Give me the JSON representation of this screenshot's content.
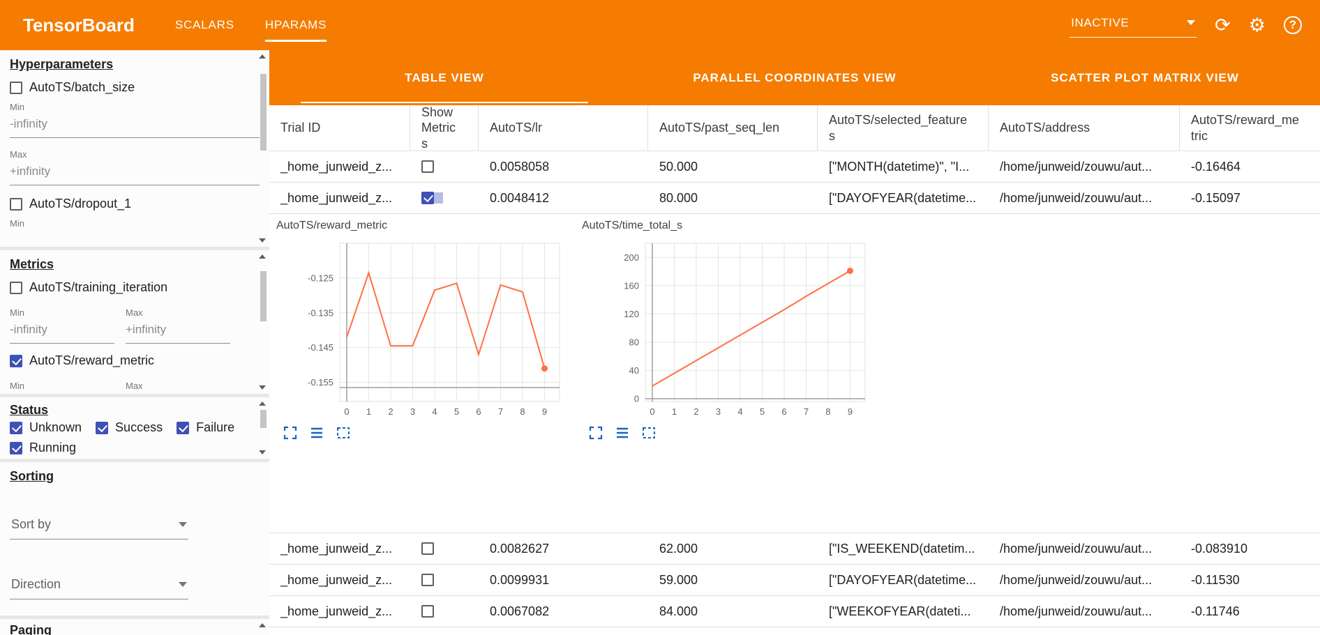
{
  "colors": {
    "primary": "#f57c00",
    "line": "#ff7043",
    "checkbox": "#3f51b5",
    "chart_icon": "#1565c0"
  },
  "header": {
    "title": "TensorBoard",
    "nav_tabs": [
      {
        "label": "SCALARS",
        "active": false
      },
      {
        "label": "HPARAMS",
        "active": true
      }
    ],
    "status_select": {
      "value": "INACTIVE"
    },
    "icons": [
      {
        "name": "refresh-icon",
        "glyph": "⟳"
      },
      {
        "name": "gear-icon",
        "glyph": "⚙"
      },
      {
        "name": "help-icon",
        "glyph": "?"
      }
    ]
  },
  "sidebar": {
    "hyperparameters": {
      "heading": "Hyperparameters",
      "param1_label": "AutoTS/batch_size",
      "param1_checked": false,
      "param1_min_label": "Min",
      "param1_min_placeholder": "-infinity",
      "param1_max_label": "Max",
      "param1_max_placeholder": "+infinity",
      "param2_label": "AutoTS/dropout_1",
      "param2_checked": false,
      "param2_min_label": "Min"
    },
    "metrics": {
      "heading": "Metrics",
      "metric1_label": "AutoTS/training_iteration",
      "metric1_checked": false,
      "min_label": "Min",
      "max_label": "Max",
      "min_placeholder": "-infinity",
      "max_placeholder": "+infinity",
      "metric2_label": "AutoTS/reward_metric",
      "metric2_checked": true,
      "metric2_min_label": "Min",
      "metric2_max_label": "Max"
    },
    "status": {
      "heading": "Status",
      "options": [
        {
          "label": "Unknown",
          "checked": true
        },
        {
          "label": "Success",
          "checked": true
        },
        {
          "label": "Failure",
          "checked": true
        },
        {
          "label": "Running",
          "checked": true
        }
      ]
    },
    "sorting": {
      "heading": "Sorting",
      "sort_by_placeholder": "Sort by",
      "direction_placeholder": "Direction"
    },
    "paging": {
      "heading": "Paging"
    }
  },
  "main": {
    "view_tabs": [
      {
        "label": "TABLE VIEW",
        "active": true
      },
      {
        "label": "PARALLEL COORDINATES VIEW",
        "active": false
      },
      {
        "label": "SCATTER PLOT MATRIX VIEW",
        "active": false
      }
    ],
    "table": {
      "columns": [
        "Trial ID",
        "Show Metrics",
        "AutoTS/lr",
        "AutoTS/past_seq_len",
        "AutoTS/selected_features",
        "AutoTS/address",
        "AutoTS/reward_metric"
      ],
      "rows": [
        {
          "trial_id": "_home_junweid_z...",
          "show_metrics": false,
          "lr": "0.0058058",
          "past_seq_len": "50.000",
          "selected_features": "[\"MONTH(datetime)\", \"I...",
          "address": "/home/junweid/zouwu/aut...",
          "reward_metric": "-0.16464"
        },
        {
          "trial_id": "_home_junweid_z...",
          "show_metrics": true,
          "lr": "0.0048412",
          "past_seq_len": "80.000",
          "selected_features": "[\"DAYOFYEAR(datetime...",
          "address": "/home/junweid/zouwu/aut...",
          "reward_metric": "-0.15097"
        },
        {
          "trial_id": "_home_junweid_z...",
          "show_metrics": false,
          "lr": "0.0082627",
          "past_seq_len": "62.000",
          "selected_features": "[\"IS_WEEKEND(datetim...",
          "address": "/home/junweid/zouwu/aut...",
          "reward_metric": "-0.083910"
        },
        {
          "trial_id": "_home_junweid_z...",
          "show_metrics": false,
          "lr": "0.0099931",
          "past_seq_len": "59.000",
          "selected_features": "[\"DAYOFYEAR(datetime...",
          "address": "/home/junweid/zouwu/aut...",
          "reward_metric": "-0.11530"
        },
        {
          "trial_id": "_home_junweid_z...",
          "show_metrics": false,
          "lr": "0.0067082",
          "past_seq_len": "84.000",
          "selected_features": "[\"WEEKOFYEAR(dateti...",
          "address": "/home/junweid/zouwu/aut...",
          "reward_metric": "-0.11746"
        }
      ],
      "rows_before_charts": 2
    },
    "chart_toolbar_icons": [
      "maximize",
      "data-list",
      "marquee-select"
    ]
  },
  "chart_data": [
    {
      "type": "line",
      "title": "AutoTS/reward_metric",
      "x": [
        0,
        1,
        2,
        3,
        4,
        5,
        6,
        7,
        8,
        9
      ],
      "values": [
        -0.142,
        -0.1235,
        -0.1445,
        -0.1445,
        -0.1285,
        -0.1265,
        -0.147,
        -0.127,
        -0.129,
        -0.151
      ],
      "ylim": [
        -0.1605,
        -0.115
      ],
      "yticks": [
        -0.125,
        -0.135,
        -0.145,
        -0.155
      ],
      "ytick_labels": [
        "-0.125",
        "-0.135",
        "-0.145",
        "-0.155"
      ],
      "xtick_labels": [
        "0",
        "1",
        "2",
        "3",
        "4",
        "5",
        "6",
        "7",
        "8",
        "9"
      ],
      "x_axis_at": -0.1565,
      "grid": true,
      "legend": false,
      "line_color": "#ff7043",
      "end_dot": true
    },
    {
      "type": "line",
      "title": "AutoTS/time_total_s",
      "x": [
        0,
        1,
        2,
        3,
        4,
        5,
        6,
        7,
        8,
        9
      ],
      "values": [
        18,
        36,
        54,
        72,
        90,
        108,
        126,
        145,
        163,
        181
      ],
      "ylim": [
        -4,
        220
      ],
      "yticks": [
        0,
        40,
        80,
        120,
        160,
        200
      ],
      "ytick_labels": [
        "0",
        "40",
        "80",
        "120",
        "160",
        "200"
      ],
      "xtick_labels": [
        "0",
        "1",
        "2",
        "3",
        "4",
        "5",
        "6",
        "7",
        "8",
        "9"
      ],
      "x_axis_at": 0,
      "grid": true,
      "legend": false,
      "line_color": "#ff7043",
      "end_dot": true
    }
  ]
}
